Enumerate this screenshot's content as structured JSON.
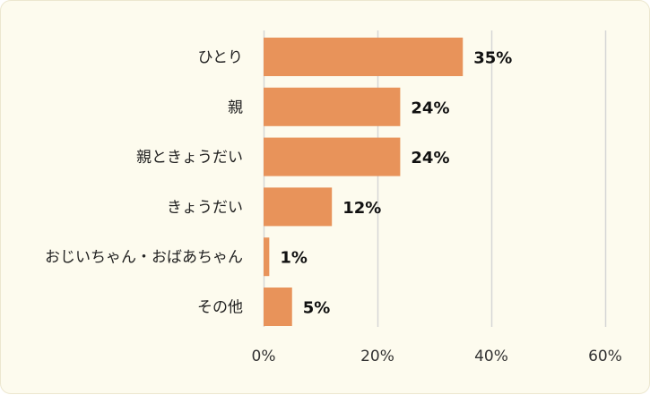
{
  "chart_data": {
    "type": "bar",
    "orientation": "horizontal",
    "categories": [
      "ひとり",
      "親",
      "親ときょうだい",
      "きょうだい",
      "おじいちゃん・おばあちゃん",
      "その他"
    ],
    "values": [
      35,
      24,
      24,
      12,
      1,
      5
    ],
    "value_labels": [
      "35%",
      "24%",
      "24%",
      "12%",
      "1%",
      "5%"
    ],
    "xlim": [
      0,
      60
    ],
    "xticks": [
      0,
      20,
      40,
      60
    ],
    "xtick_labels": [
      "0%",
      "20%",
      "40%",
      "60%"
    ],
    "grid": true,
    "bar_color": "#e8935a",
    "grid_color": "#d6d6d6",
    "title": "",
    "xlabel": "",
    "ylabel": ""
  }
}
